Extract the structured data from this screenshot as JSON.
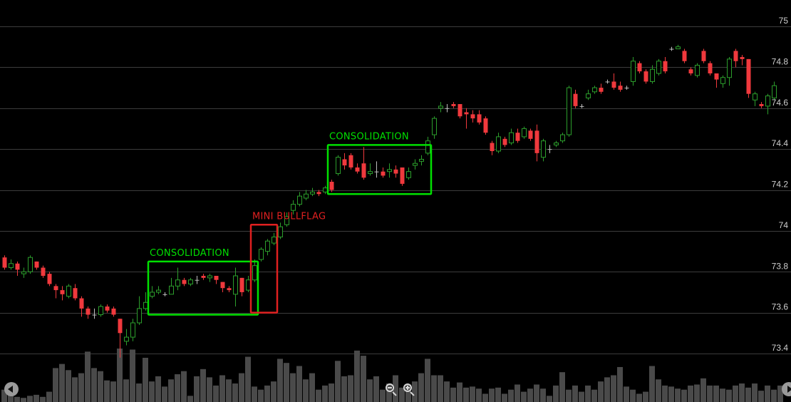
{
  "chart_data": {
    "type": "candlestick",
    "y_axis": {
      "ticks": [
        "73.4",
        "73.6",
        "73.8",
        "74",
        "74.2",
        "74.4",
        "74.6",
        "74.8",
        "75"
      ],
      "ylim": [
        73.28,
        75.1
      ],
      "position": "right"
    },
    "grid": true,
    "colors": {
      "up": "#2c9e2c",
      "down": "#f0393d",
      "doji": "#bdbdbd",
      "volume": "#4a4a4a",
      "grid": "#3c3c3c",
      "background": "#000000"
    },
    "candles": [
      [
        73.87,
        73.82,
        73.88,
        73.81
      ],
      [
        73.82,
        73.84,
        73.86,
        73.81
      ],
      [
        73.84,
        73.81,
        73.85,
        73.78
      ],
      [
        73.79,
        73.8,
        73.82,
        73.77
      ],
      [
        73.8,
        73.87,
        73.88,
        73.79
      ],
      [
        73.85,
        73.82,
        73.85,
        73.81
      ],
      [
        73.82,
        73.78,
        73.83,
        73.77
      ],
      [
        73.79,
        73.74,
        73.8,
        73.73
      ],
      [
        73.73,
        73.71,
        73.74,
        73.67
      ],
      [
        73.71,
        73.69,
        73.73,
        73.66
      ],
      [
        73.68,
        73.73,
        73.74,
        73.67
      ],
      [
        73.72,
        73.67,
        73.74,
        73.66
      ],
      [
        73.67,
        73.62,
        73.68,
        73.58
      ],
      [
        73.62,
        73.59,
        73.63,
        73.57
      ],
      [
        73.59,
        73.59,
        73.62,
        73.57
      ],
      [
        73.59,
        73.63,
        73.64,
        73.58
      ],
      [
        73.63,
        73.61,
        73.64,
        73.6
      ],
      [
        73.62,
        73.59,
        73.63,
        73.58
      ],
      [
        73.57,
        73.5,
        73.57,
        73.38
      ],
      [
        73.46,
        73.48,
        73.52,
        73.44
      ],
      [
        73.48,
        73.55,
        73.57,
        73.46
      ],
      [
        73.55,
        73.62,
        73.68,
        73.54
      ],
      [
        73.62,
        73.65,
        73.7,
        73.61
      ],
      [
        73.68,
        73.7,
        73.73,
        73.67
      ],
      [
        73.7,
        73.71,
        73.73,
        73.69
      ],
      [
        73.69,
        73.69,
        73.7,
        73.68
      ],
      [
        73.69,
        73.73,
        73.77,
        73.69
      ],
      [
        73.73,
        73.76,
        73.82,
        73.71
      ],
      [
        73.76,
        73.74,
        73.77,
        73.73
      ],
      [
        73.74,
        73.76,
        73.77,
        73.73
      ],
      [
        73.76,
        73.76,
        73.78,
        73.74
      ],
      [
        73.78,
        73.77,
        73.79,
        73.76
      ],
      [
        73.77,
        73.78,
        73.79,
        73.75
      ],
      [
        73.78,
        73.76,
        73.78,
        73.74
      ],
      [
        73.75,
        73.72,
        73.75,
        73.7
      ],
      [
        73.72,
        73.71,
        73.73,
        73.7
      ],
      [
        73.69,
        73.78,
        73.82,
        73.63
      ],
      [
        73.77,
        73.7,
        73.77,
        73.68
      ],
      [
        73.71,
        73.76,
        73.78,
        73.7
      ],
      [
        73.76,
        73.83,
        73.86,
        73.75
      ],
      [
        73.86,
        73.91,
        73.92,
        73.85
      ],
      [
        73.9,
        73.95,
        73.96,
        73.88
      ],
      [
        73.94,
        73.97,
        73.99,
        73.93
      ],
      [
        73.97,
        74.02,
        74.04,
        73.96
      ],
      [
        74.03,
        74.07,
        74.09,
        74.02
      ],
      [
        74.1,
        74.13,
        74.15,
        74.08
      ],
      [
        74.13,
        74.17,
        74.19,
        74.12
      ],
      [
        74.16,
        74.18,
        74.2,
        74.15
      ],
      [
        74.18,
        74.19,
        74.21,
        74.17
      ],
      [
        74.19,
        74.18,
        74.2,
        74.17
      ],
      [
        74.19,
        74.21,
        74.22,
        74.18
      ],
      [
        74.24,
        74.2,
        74.25,
        74.19
      ],
      [
        74.28,
        74.36,
        74.37,
        74.27
      ],
      [
        74.35,
        74.32,
        74.38,
        74.3
      ],
      [
        74.37,
        74.31,
        74.38,
        74.3
      ],
      [
        74.31,
        74.29,
        74.33,
        74.28
      ],
      [
        74.33,
        74.26,
        74.41,
        74.25
      ],
      [
        74.28,
        74.29,
        74.33,
        74.27
      ],
      [
        74.29,
        74.29,
        74.34,
        74.26
      ],
      [
        74.29,
        74.27,
        74.31,
        74.26
      ],
      [
        74.29,
        74.3,
        74.33,
        74.26
      ],
      [
        74.3,
        74.28,
        74.32,
        74.26
      ],
      [
        74.31,
        74.23,
        74.31,
        74.22
      ],
      [
        74.26,
        74.29,
        74.31,
        74.25
      ],
      [
        74.32,
        74.33,
        74.35,
        74.3
      ],
      [
        74.34,
        74.35,
        74.37,
        74.32
      ],
      [
        74.38,
        74.44,
        74.46,
        74.37
      ],
      [
        74.47,
        74.55,
        74.56,
        74.45
      ],
      [
        74.6,
        74.61,
        74.63,
        74.58
      ],
      [
        74.6,
        74.6,
        74.62,
        74.58
      ],
      [
        74.62,
        74.61,
        74.63,
        74.6
      ],
      [
        74.62,
        74.56,
        74.62,
        74.55
      ],
      [
        74.58,
        74.57,
        74.6,
        74.5
      ],
      [
        74.57,
        74.55,
        74.59,
        74.53
      ],
      [
        74.57,
        74.53,
        74.59,
        74.52
      ],
      [
        74.55,
        74.48,
        74.56,
        74.47
      ],
      [
        74.43,
        74.39,
        74.44,
        74.37
      ],
      [
        74.39,
        74.46,
        74.48,
        74.38
      ],
      [
        74.45,
        74.42,
        74.46,
        74.41
      ],
      [
        74.43,
        74.48,
        74.5,
        74.42
      ],
      [
        74.48,
        74.44,
        74.5,
        74.43
      ],
      [
        74.46,
        74.5,
        74.51,
        74.45
      ],
      [
        74.49,
        74.45,
        74.5,
        74.44
      ],
      [
        74.49,
        74.38,
        74.52,
        74.34
      ],
      [
        74.36,
        74.44,
        74.45,
        74.34
      ],
      [
        74.4,
        74.4,
        74.42,
        74.38
      ],
      [
        74.42,
        74.43,
        74.44,
        74.41
      ],
      [
        74.44,
        74.47,
        74.48,
        74.43
      ],
      [
        74.47,
        74.7,
        74.71,
        74.46
      ],
      [
        74.67,
        74.61,
        74.69,
        74.6
      ],
      [
        74.61,
        74.61,
        74.62,
        74.6
      ],
      [
        74.65,
        74.67,
        74.69,
        74.64
      ],
      [
        74.68,
        74.7,
        74.71,
        74.67
      ],
      [
        74.7,
        74.68,
        74.72,
        74.67
      ],
      [
        74.73,
        74.73,
        74.74,
        74.72
      ],
      [
        74.73,
        74.7,
        74.77,
        74.69
      ],
      [
        74.71,
        74.69,
        74.73,
        74.68
      ],
      [
        74.7,
        74.7,
        74.71,
        74.69
      ],
      [
        74.73,
        74.83,
        74.85,
        74.71
      ],
      [
        74.82,
        74.78,
        74.83,
        74.77
      ],
      [
        74.78,
        74.73,
        74.79,
        74.72
      ],
      [
        74.73,
        74.79,
        74.81,
        74.72
      ],
      [
        74.77,
        74.83,
        74.84,
        74.76
      ],
      [
        74.83,
        74.78,
        74.85,
        74.77
      ],
      [
        74.89,
        74.89,
        74.9,
        74.88
      ],
      [
        74.89,
        74.9,
        74.91,
        74.89
      ],
      [
        74.88,
        74.83,
        74.89,
        74.82
      ],
      [
        74.79,
        74.77,
        74.8,
        74.76
      ],
      [
        74.76,
        74.81,
        74.82,
        74.75
      ],
      [
        74.88,
        74.83,
        74.89,
        74.82
      ],
      [
        74.82,
        74.77,
        74.83,
        74.76
      ],
      [
        74.77,
        74.74,
        74.77,
        74.7
      ],
      [
        74.72,
        74.75,
        74.76,
        74.7
      ],
      [
        74.75,
        74.84,
        74.85,
        74.71
      ],
      [
        74.88,
        74.83,
        74.89,
        74.8
      ],
      [
        74.85,
        74.84,
        74.86,
        74.81
      ],
      [
        74.84,
        74.67,
        74.84,
        74.65
      ],
      [
        74.64,
        74.67,
        74.68,
        74.61
      ],
      [
        74.62,
        74.61,
        74.63,
        74.6
      ],
      [
        74.61,
        74.66,
        74.67,
        74.57
      ],
      [
        74.65,
        74.71,
        74.73,
        74.64
      ]
    ],
    "volume": [
      0.12,
      0.08,
      0.05,
      0.04,
      0.06,
      0.07,
      0.05,
      0.1,
      0.33,
      0.37,
      0.31,
      0.24,
      0.28,
      0.49,
      0.33,
      0.3,
      0.21,
      0.2,
      0.52,
      0.22,
      0.51,
      0.18,
      0.43,
      0.2,
      0.25,
      0.15,
      0.22,
      0.27,
      0.3,
      0.06,
      0.25,
      0.32,
      0.24,
      0.16,
      0.26,
      0.22,
      0.18,
      0.28,
      0.44,
      0.15,
      0.12,
      0.16,
      0.2,
      0.42,
      0.38,
      0.28,
      0.35,
      0.22,
      0.28,
      0.12,
      0.16,
      0.18,
      0.4,
      0.25,
      0.26,
      0.5,
      0.45,
      0.22,
      0.25,
      0.12,
      0.18,
      0.26,
      0.14,
      0.17,
      0.2,
      0.28,
      0.42,
      0.26,
      0.26,
      0.2,
      0.14,
      0.19,
      0.14,
      0.15,
      0.13,
      0.08,
      0.13,
      0.14,
      0.08,
      0.12,
      0.17,
      0.1,
      0.13,
      0.17,
      0.13,
      0.06,
      0.16,
      0.29,
      0.12,
      0.16,
      0.1,
      0.16,
      0.12,
      0.2,
      0.24,
      0.26,
      0.34,
      0.15,
      0.12,
      0.08,
      0.1,
      0.35,
      0.22,
      0.16,
      0.15,
      0.13,
      0.12,
      0.16,
      0.17,
      0.23,
      0.16,
      0.16,
      0.13,
      0.12,
      0.16,
      0.18,
      0.14,
      0.18,
      0.11,
      0.16,
      0.12,
      0.16
    ],
    "annotations": [
      {
        "text": "CONSOLIDATION",
        "color": "#00e000",
        "x_range": [
          23,
          39
        ],
        "y_range": [
          73.59,
          73.85
        ]
      },
      {
        "text": "MINI  BULLFLAG",
        "color": "#e02020",
        "x_range": [
          39,
          42
        ],
        "y_range": [
          73.6,
          74.03
        ]
      },
      {
        "text": "CONSOLIDATION",
        "color": "#00e000",
        "x_range": [
          51,
          66
        ],
        "y_range": [
          74.18,
          74.42
        ]
      }
    ]
  },
  "controls": {
    "scroll_left": "scroll-left",
    "scroll_right": "scroll-right",
    "zoom_out": "zoom-out",
    "zoom_in": "zoom-in"
  }
}
